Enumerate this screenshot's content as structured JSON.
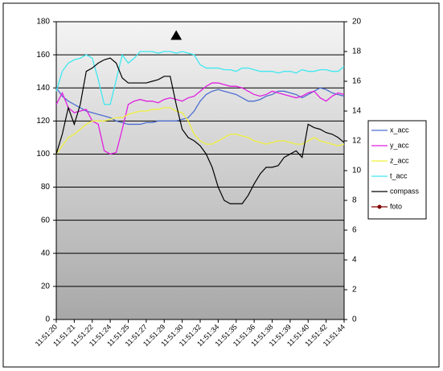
{
  "chart_data": {
    "type": "line",
    "categories": [
      "11:51:20",
      null,
      null,
      "11:51:21",
      null,
      null,
      "11:51:22",
      null,
      null,
      "11:51:24",
      null,
      null,
      "11:51:25",
      null,
      null,
      "11:51:27",
      null,
      null,
      "11:51:29",
      null,
      null,
      "11:51:30",
      null,
      null,
      "11:51:32",
      null,
      null,
      "11:51:34",
      null,
      null,
      "11:51:35",
      null,
      null,
      "11:51:36",
      null,
      null,
      "11:51:38",
      null,
      null,
      "11:51:39",
      null,
      null,
      "11:51:40",
      null,
      null,
      "11:51:42",
      null,
      null,
      "11:51:44"
    ],
    "series": [
      {
        "name": "x_acc",
        "color": "#4f6fd0",
        "values": [
          140,
          135,
          132,
          130,
          128,
          126,
          125,
          124,
          123,
          122,
          120,
          119,
          118,
          118,
          118,
          119,
          119,
          120,
          120,
          120,
          120,
          121,
          122,
          126,
          132,
          136,
          138,
          139,
          138,
          137,
          136,
          134,
          132,
          132,
          133,
          135,
          136,
          138,
          138,
          137,
          136,
          134,
          136,
          138,
          140,
          139,
          137,
          136,
          135
        ]
      },
      {
        "name": "y_acc",
        "color": "#e020e0",
        "values": [
          130,
          137,
          128,
          125,
          126,
          127,
          120,
          118,
          102,
          100,
          101,
          115,
          130,
          132,
          133,
          132,
          132,
          131,
          133,
          134,
          133,
          132,
          134,
          135,
          138,
          141,
          143,
          143,
          142,
          141,
          141,
          140,
          138,
          136,
          135,
          136,
          138,
          137,
          136,
          135,
          134,
          135,
          137,
          138,
          134,
          132,
          135,
          137,
          136
        ]
      },
      {
        "name": "z_acc",
        "color": "#f0f040",
        "values": [
          100,
          105,
          110,
          112,
          115,
          118,
          120,
          120,
          120,
          121,
          122,
          122,
          124,
          125,
          126,
          126,
          127,
          127,
          128,
          128,
          126,
          125,
          120,
          112,
          108,
          106,
          106,
          108,
          110,
          112,
          112,
          111,
          110,
          108,
          107,
          106,
          107,
          108,
          108,
          107,
          106,
          106,
          108,
          110,
          108,
          107,
          106,
          105,
          106
        ]
      },
      {
        "name": "t_acc",
        "color": "#40e8f0",
        "values": [
          138,
          150,
          155,
          157,
          158,
          160,
          158,
          145,
          130,
          130,
          145,
          160,
          155,
          158,
          162,
          162,
          162,
          161,
          162,
          162,
          161,
          162,
          161,
          160,
          154,
          152,
          152,
          152,
          151,
          151,
          150,
          152,
          152,
          151,
          150,
          150,
          150,
          149,
          150,
          150,
          149,
          151,
          150,
          150,
          151,
          151,
          150,
          150,
          153
        ]
      },
      {
        "name": "compass",
        "color": "#000000",
        "values": [
          100,
          112,
          128,
          118,
          130,
          150,
          152,
          155,
          157,
          158,
          155,
          146,
          143,
          143,
          143,
          143,
          144,
          145,
          147,
          147,
          130,
          115,
          110,
          108,
          105,
          100,
          92,
          80,
          72,
          70,
          70,
          70,
          75,
          82,
          88,
          92,
          92,
          93,
          98,
          100,
          102,
          98,
          118,
          116,
          115,
          113,
          112,
          110,
          107
        ]
      },
      {
        "name": "foto",
        "color": "#800000",
        "marker_color": "#000000",
        "values": [
          null,
          null,
          null,
          null,
          null,
          null,
          null,
          null,
          null,
          null,
          null,
          null,
          null,
          null,
          null,
          null,
          null,
          null,
          null,
          null,
          172,
          null,
          null,
          null,
          null,
          null,
          null,
          null,
          null,
          null,
          null,
          null,
          null,
          null,
          null,
          null,
          null,
          null,
          null,
          null,
          null,
          null,
          null,
          null,
          null,
          null,
          null,
          null,
          null
        ]
      }
    ],
    "ylim": [
      0,
      180
    ],
    "yticks": [
      0,
      20,
      40,
      60,
      80,
      100,
      120,
      140,
      160,
      180
    ],
    "y2lim": [
      0,
      20
    ],
    "y2ticks": [
      0,
      2,
      4,
      6,
      8,
      10,
      12,
      14,
      16,
      18,
      20
    ],
    "grid": true,
    "legend": "right"
  }
}
